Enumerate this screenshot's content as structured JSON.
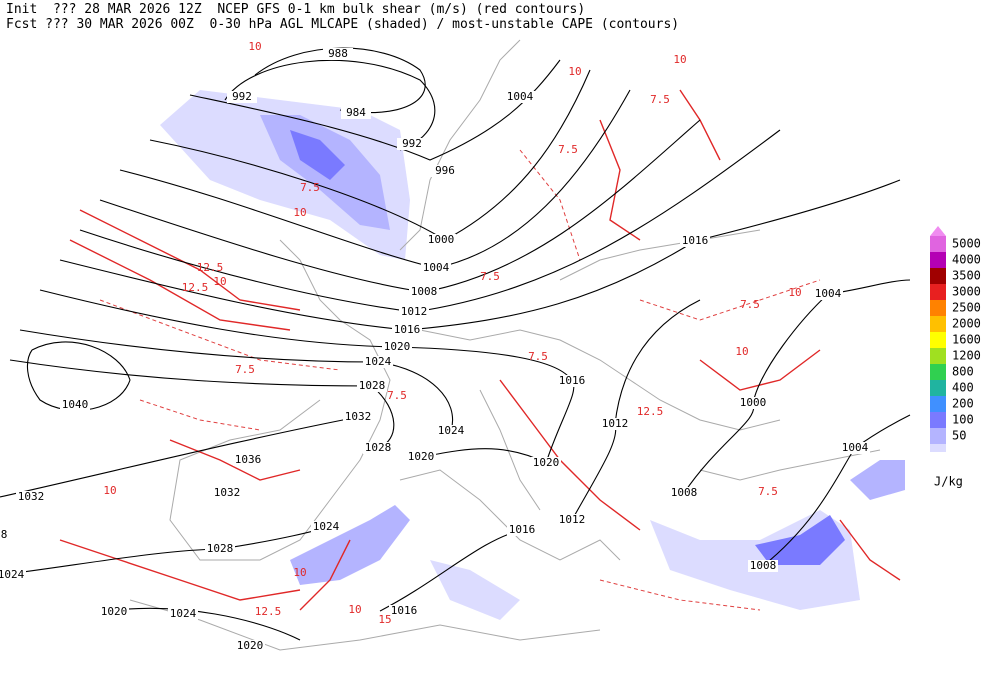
{
  "header": {
    "lines": [
      "Init  ??? 28 MAR 2026 12Z  NCEP GFS 0-1 km bulk shear (m/s) (red contours)",
      "Fcst ??? 30 MAR 2026 00Z  0-30 hPa AGL MLCAPE (shaded) / most-unstable CAPE (contours)"
    ]
  },
  "legend": {
    "top_color": "#f08cf0",
    "levels": [
      {
        "label": "5000",
        "color": "#e064e0"
      },
      {
        "label": "4000",
        "color": "#b400b4"
      },
      {
        "label": "3500",
        "color": "#a00000"
      },
      {
        "label": "3000",
        "color": "#e82020"
      },
      {
        "label": "2500",
        "color": "#ff8200"
      },
      {
        "label": "2000",
        "color": "#ffc000"
      },
      {
        "label": "1600",
        "color": "#ffff00"
      },
      {
        "label": "1200",
        "color": "#a0e020"
      },
      {
        "label": "800",
        "color": "#30d050"
      },
      {
        "label": "400",
        "color": "#20b4a0"
      },
      {
        "label": "200",
        "color": "#4090ff"
      },
      {
        "label": "100",
        "color": "#7a7aff"
      },
      {
        "label": "50",
        "color": "#b4b4ff"
      }
    ],
    "bottom_color": "#dcdcff",
    "unit": "J/kg"
  },
  "isobar_labels": [
    "988",
    "992",
    "984",
    "992",
    "996",
    "1000",
    "1004",
    "1008",
    "1012",
    "1016",
    "1020",
    "1024",
    "1028",
    "1032",
    "1036",
    "1032",
    "1028",
    "1024",
    "1020",
    "1024",
    "1020",
    "1016",
    "1016",
    "1012",
    "1008",
    "1008",
    "1004",
    "1000",
    "1004",
    "1016",
    "1004",
    "1012",
    "1016",
    "1020",
    "1020",
    "1024",
    "1028",
    "1040",
    "1032",
    "1024",
    "8"
  ],
  "shear_labels": [
    "10",
    "10",
    "7.5",
    "10",
    "12.5",
    "7.5",
    "10",
    "7.5",
    "12.5",
    "7.5",
    "7.5",
    "12.5",
    "10",
    "7.5",
    "10",
    "7.5",
    "15",
    "10",
    "7.5",
    "10",
    "10",
    "12.5",
    "7.5",
    "10"
  ]
}
